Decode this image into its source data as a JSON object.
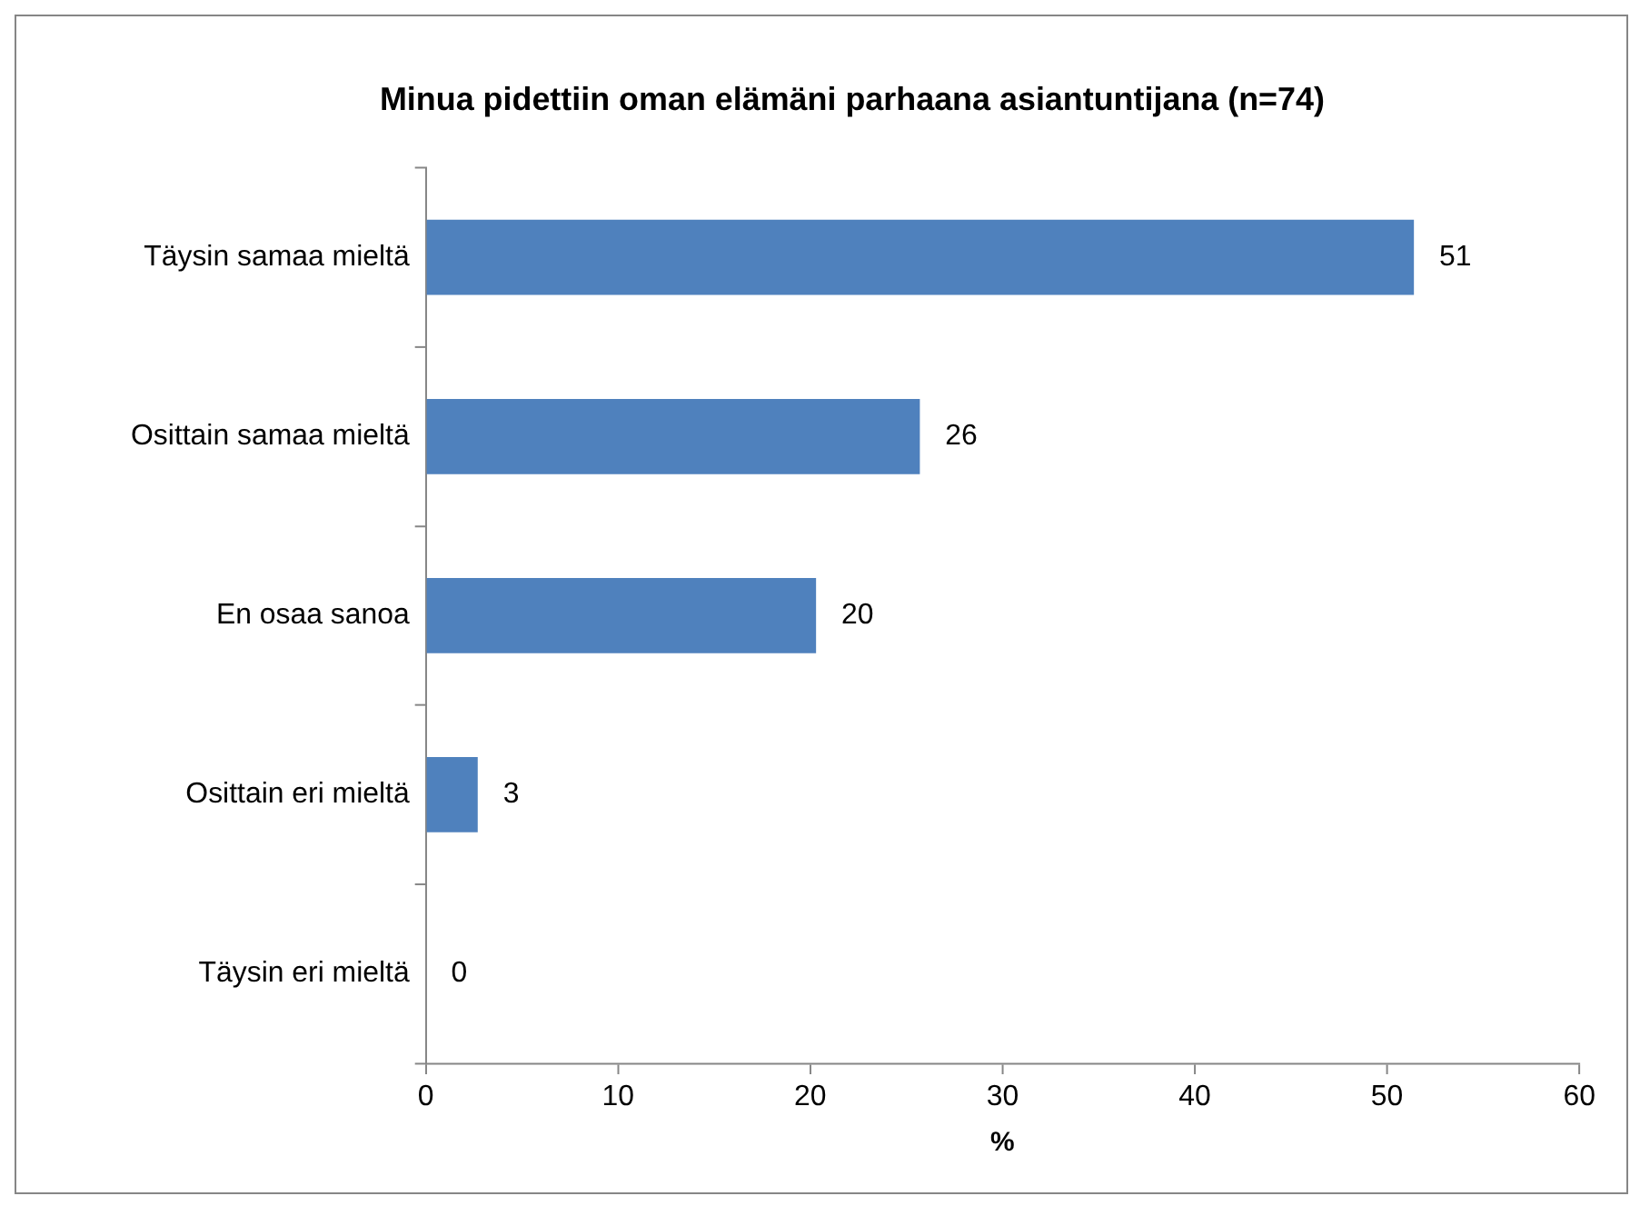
{
  "chart_data": {
    "type": "bar",
    "orientation": "horizontal",
    "title": "Minua pidettiin oman elämäni parhaana asiantuntijana (n=74)",
    "xlabel": "%",
    "categories": [
      "Täysin samaa mieltä",
      "Osittain samaa mieltä",
      "En osaa sanoa",
      "Osittain eri mieltä",
      "Täysin eri mieltä"
    ],
    "values": [
      51.4,
      25.7,
      20.3,
      2.7,
      0
    ],
    "value_labels": [
      "51",
      "26",
      "20",
      "3",
      "0"
    ],
    "color": "#4f81bd",
    "xlim": [
      0,
      60
    ],
    "xticks": [
      0,
      10,
      20,
      30,
      40,
      50,
      60
    ],
    "grid": false,
    "legend": false
  }
}
